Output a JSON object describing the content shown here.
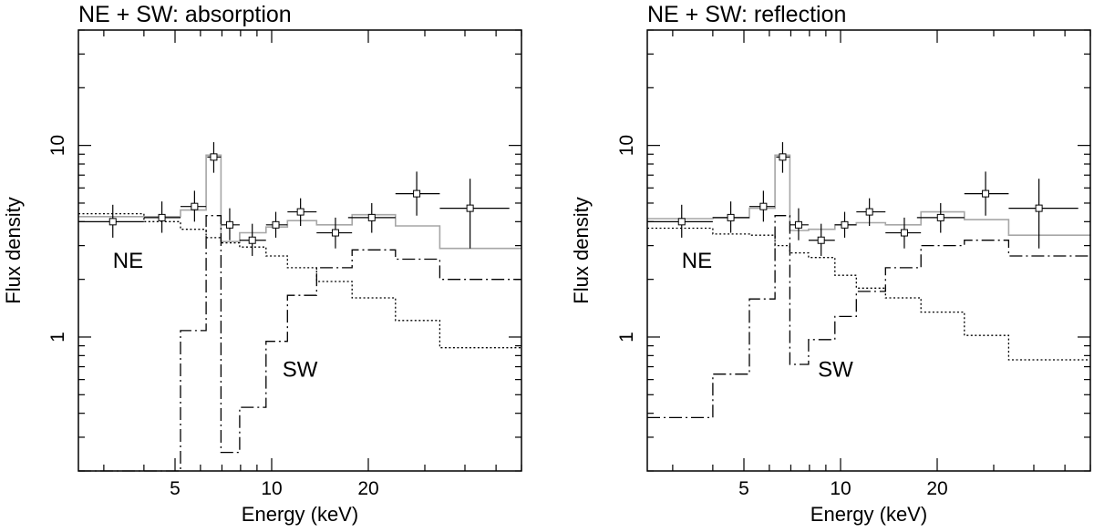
{
  "chart_data": [
    {
      "type": "line",
      "title": "NE + SW: absorption",
      "xlabel": "Energy (keV)",
      "ylabel": "Flux density",
      "xscale": "log",
      "yscale": "log",
      "xlim": [
        2.5,
        60
      ],
      "ylim": [
        0.2,
        40
      ],
      "xtick_labels": [
        {
          "value": 5,
          "label": "5"
        },
        {
          "value": 10,
          "label": "10"
        },
        {
          "value": 20,
          "label": "20"
        }
      ],
      "ytick_labels": [
        {
          "value": 1,
          "label": "1"
        },
        {
          "value": 10,
          "label": "10"
        }
      ],
      "annotations": [
        {
          "text": "NE",
          "x": 3.2,
          "y": 2.3
        },
        {
          "text": "SW",
          "x": 10.8,
          "y": 0.62
        }
      ],
      "data": {
        "name": "data",
        "points": [
          {
            "x": 3.2,
            "xlo": 2.5,
            "xhi": 4.0,
            "y": 4.0,
            "ylo": 3.3,
            "yhi": 4.9
          },
          {
            "x": 4.55,
            "xlo": 4.0,
            "xhi": 5.2,
            "y": 4.2,
            "ylo": 3.5,
            "yhi": 5.1
          },
          {
            "x": 5.75,
            "xlo": 5.2,
            "xhi": 6.25,
            "y": 4.8,
            "ylo": 4.0,
            "yhi": 5.8
          },
          {
            "x": 6.6,
            "xlo": 6.3,
            "xhi": 6.95,
            "y": 8.7,
            "ylo": 7.2,
            "yhi": 10.4
          },
          {
            "x": 7.4,
            "xlo": 6.95,
            "xhi": 7.95,
            "y": 3.85,
            "ylo": 3.2,
            "yhi": 4.7
          },
          {
            "x": 8.7,
            "xlo": 7.95,
            "xhi": 9.6,
            "y": 3.2,
            "ylo": 2.65,
            "yhi": 3.9
          },
          {
            "x": 10.3,
            "xlo": 9.6,
            "xhi": 11.2,
            "y": 3.85,
            "ylo": 3.3,
            "yhi": 4.5
          },
          {
            "x": 12.3,
            "xlo": 11.2,
            "xhi": 13.8,
            "y": 4.5,
            "ylo": 3.8,
            "yhi": 5.3
          },
          {
            "x": 15.8,
            "xlo": 13.8,
            "xhi": 17.8,
            "y": 3.5,
            "ylo": 2.9,
            "yhi": 4.2
          },
          {
            "x": 20.5,
            "xlo": 17.3,
            "xhi": 24.3,
            "y": 4.2,
            "ylo": 3.5,
            "yhi": 5.0
          },
          {
            "x": 28.3,
            "xlo": 24.3,
            "xhi": 33.4,
            "y": 5.6,
            "ylo": 4.3,
            "yhi": 7.3
          },
          {
            "x": 41.5,
            "xlo": 33.4,
            "xhi": 55.0,
            "y": 4.7,
            "ylo": 2.9,
            "yhi": 6.7
          }
        ]
      },
      "series": [
        {
          "name": "total model",
          "style": "solid-gray",
          "edges": [
            2.5,
            4.0,
            5.2,
            6.25,
            6.95,
            7.95,
            9.6,
            11.2,
            13.8,
            17.8,
            24.3,
            33.4,
            60
          ],
          "values": [
            4.25,
            4.25,
            4.6,
            8.9,
            3.15,
            3.5,
            3.75,
            4.05,
            3.85,
            4.35,
            3.8,
            2.9
          ]
        },
        {
          "name": "NE",
          "style": "dotted",
          "edges": [
            2.5,
            4.0,
            5.2,
            6.25,
            6.95,
            7.95,
            9.6,
            11.2,
            13.8,
            17.8,
            24.3,
            33.4,
            60
          ],
          "values": [
            4.4,
            4.0,
            3.65,
            3.3,
            3.1,
            2.95,
            2.65,
            2.3,
            1.95,
            1.6,
            1.22,
            0.88
          ]
        },
        {
          "name": "SW",
          "style": "dash-dot",
          "edges": [
            2.5,
            5.2,
            6.25,
            6.95,
            7.95,
            9.6,
            11.2,
            13.8,
            17.8,
            24.3,
            33.4,
            60
          ],
          "values": [
            0.06,
            1.08,
            4.3,
            0.25,
            0.43,
            0.95,
            1.65,
            2.3,
            2.85,
            2.55,
            2.0
          ]
        }
      ]
    },
    {
      "type": "line",
      "title": "NE + SW: reflection",
      "xlabel": "Energy (keV)",
      "ylabel": "Flux density",
      "xscale": "log",
      "yscale": "log",
      "xlim": [
        2.5,
        60
      ],
      "ylim": [
        0.2,
        40
      ],
      "xtick_labels": [
        {
          "value": 5,
          "label": "5"
        },
        {
          "value": 10,
          "label": "10"
        },
        {
          "value": 20,
          "label": "20"
        }
      ],
      "ytick_labels": [
        {
          "value": 1,
          "label": "1"
        },
        {
          "value": 10,
          "label": "10"
        }
      ],
      "annotations": [
        {
          "text": "NE",
          "x": 3.2,
          "y": 2.3
        },
        {
          "text": "SW",
          "x": 8.5,
          "y": 0.62
        }
      ],
      "data": {
        "name": "data",
        "points": [
          {
            "x": 3.2,
            "xlo": 2.5,
            "xhi": 4.0,
            "y": 4.0,
            "ylo": 3.3,
            "yhi": 4.9
          },
          {
            "x": 4.55,
            "xlo": 4.0,
            "xhi": 5.2,
            "y": 4.2,
            "ylo": 3.5,
            "yhi": 5.1
          },
          {
            "x": 5.75,
            "xlo": 5.2,
            "xhi": 6.25,
            "y": 4.8,
            "ylo": 4.0,
            "yhi": 5.8
          },
          {
            "x": 6.6,
            "xlo": 6.3,
            "xhi": 6.95,
            "y": 8.7,
            "ylo": 7.2,
            "yhi": 10.4
          },
          {
            "x": 7.4,
            "xlo": 6.95,
            "xhi": 7.95,
            "y": 3.85,
            "ylo": 3.2,
            "yhi": 4.7
          },
          {
            "x": 8.7,
            "xlo": 7.95,
            "xhi": 9.6,
            "y": 3.2,
            "ylo": 2.65,
            "yhi": 3.9
          },
          {
            "x": 10.3,
            "xlo": 9.6,
            "xhi": 11.2,
            "y": 3.85,
            "ylo": 3.3,
            "yhi": 4.5
          },
          {
            "x": 12.3,
            "xlo": 11.2,
            "xhi": 13.8,
            "y": 4.5,
            "ylo": 3.8,
            "yhi": 5.3
          },
          {
            "x": 15.8,
            "xlo": 13.8,
            "xhi": 17.8,
            "y": 3.5,
            "ylo": 2.9,
            "yhi": 4.2
          },
          {
            "x": 20.5,
            "xlo": 17.3,
            "xhi": 24.3,
            "y": 4.2,
            "ylo": 3.5,
            "yhi": 5.0
          },
          {
            "x": 28.3,
            "xlo": 24.3,
            "xhi": 33.4,
            "y": 5.6,
            "ylo": 4.3,
            "yhi": 7.3
          },
          {
            "x": 41.5,
            "xlo": 33.4,
            "xhi": 55.0,
            "y": 4.7,
            "ylo": 2.9,
            "yhi": 6.7
          }
        ]
      },
      "series": [
        {
          "name": "total model",
          "style": "solid-gray",
          "edges": [
            2.5,
            4.0,
            5.2,
            6.25,
            6.95,
            7.95,
            9.6,
            11.2,
            13.8,
            17.8,
            24.3,
            33.4,
            60
          ],
          "values": [
            4.15,
            4.2,
            4.7,
            8.9,
            3.6,
            3.65,
            3.85,
            3.95,
            3.85,
            4.5,
            4.1,
            3.4
          ]
        },
        {
          "name": "NE",
          "style": "dotted",
          "edges": [
            2.5,
            4.0,
            5.2,
            6.25,
            6.95,
            7.95,
            9.6,
            11.2,
            13.8,
            17.8,
            24.3,
            33.4,
            60
          ],
          "values": [
            3.7,
            3.45,
            3.4,
            3.0,
            2.75,
            2.6,
            2.1,
            1.8,
            1.6,
            1.35,
            1.02,
            0.76
          ]
        },
        {
          "name": "SW",
          "style": "dash-dot",
          "edges": [
            2.5,
            4.0,
            5.2,
            6.25,
            6.95,
            7.95,
            9.6,
            11.2,
            13.8,
            17.8,
            24.3,
            33.4,
            60
          ],
          "values": [
            0.38,
            0.64,
            1.58,
            4.3,
            0.72,
            0.97,
            1.28,
            1.73,
            2.3,
            3.0,
            3.2,
            2.65
          ]
        }
      ]
    }
  ]
}
